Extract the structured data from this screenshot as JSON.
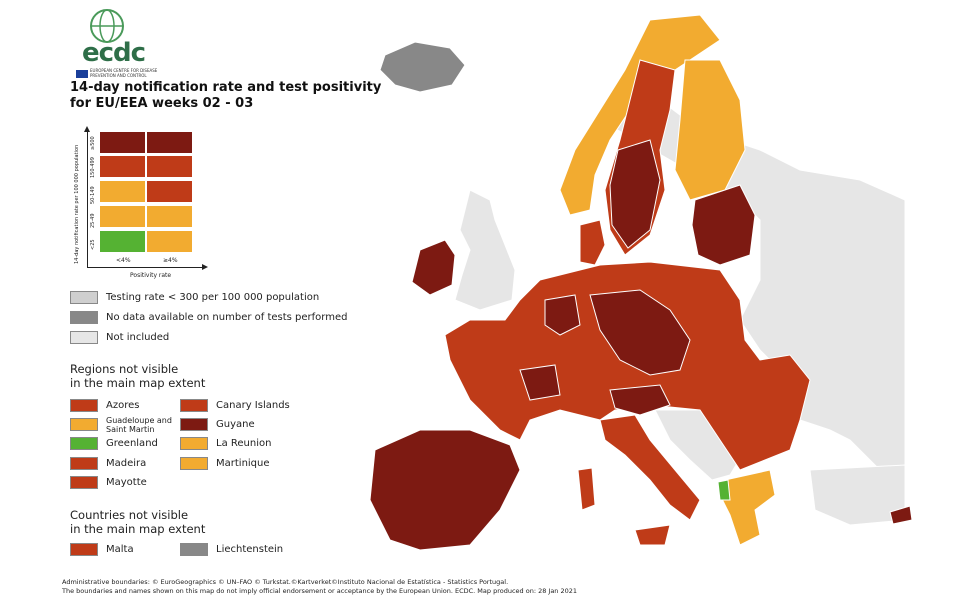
{
  "logo": {
    "text": "ecdc",
    "subtitle": "EUROPEAN CENTRE FOR DISEASE PREVENTION AND CONTROL"
  },
  "title": {
    "line1": "14-day notification rate and test positivity",
    "line2": "for EU/EEA weeks 02 - 03"
  },
  "colors": {
    "dark_red": "#7d1a12",
    "red": "#bf3b18",
    "orange": "#f2ab30",
    "green": "#55b233",
    "light_gray": "#cfcfcf",
    "mid_gray": "#888888",
    "not_included": "#e6e6e6",
    "sea": "#ffffff"
  },
  "matrix": {
    "y_axis_label": "14-day notification rate per 100 000 population",
    "x_axis_label": "Positivity rate",
    "rows": [
      {
        "label": "≥500",
        "low": "dark_red",
        "high": "dark_red"
      },
      {
        "label": "150-499",
        "low": "red",
        "high": "red"
      },
      {
        "label": "50-149",
        "low": "orange",
        "high": "red"
      },
      {
        "label": "25-49",
        "low": "orange",
        "high": "orange"
      },
      {
        "label": "<25",
        "low": "green",
        "high": "orange"
      }
    ],
    "columns": [
      "<4%",
      "≥4%"
    ]
  },
  "legend": {
    "testing_rate": "Testing rate < 300 per 100 000 population",
    "no_data": "No data available on number of tests performed",
    "not_included": "Not included"
  },
  "regions_section": {
    "heading_line1": "Regions not visible",
    "heading_line2": "in the main map extent",
    "items": [
      {
        "label": "Azores",
        "color": "red"
      },
      {
        "label": "Canary Islands",
        "color": "red"
      },
      {
        "label": "Guadeloupe and Saint Martin",
        "color": "orange"
      },
      {
        "label": "Guyane",
        "color": "dark_red"
      },
      {
        "label": "Greenland",
        "color": "green"
      },
      {
        "label": "La Reunion",
        "color": "orange"
      },
      {
        "label": "Madeira",
        "color": "red"
      },
      {
        "label": "Martinique",
        "color": "orange"
      },
      {
        "label": "Mayotte",
        "color": "red"
      }
    ]
  },
  "countries_section": {
    "heading_line1": "Countries not visible",
    "heading_line2": "in the main map extent",
    "items": [
      {
        "label": "Malta",
        "color": "red"
      },
      {
        "label": "Liechtenstein",
        "color": "mid_gray"
      }
    ]
  },
  "footer": {
    "line1": "Administrative boundaries: © EuroGeographics © UN–FAO © Turkstat.©Kartverket©Instituto Nacional de Estatística - Statistics Portugal.",
    "line2": "The boundaries and names shown on this map do not imply official endorsement or acceptance by the European Union. ECDC. Map produced on: 28 Jan 2021"
  }
}
